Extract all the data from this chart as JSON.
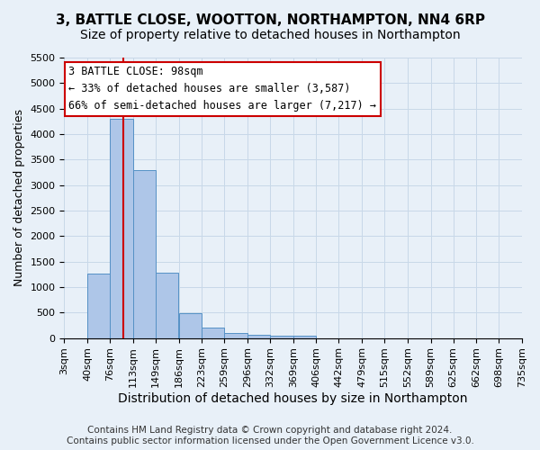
{
  "title": "3, BATTLE CLOSE, WOOTTON, NORTHAMPTON, NN4 6RP",
  "subtitle": "Size of property relative to detached houses in Northampton",
  "xlabel": "Distribution of detached houses by size in Northampton",
  "ylabel": "Number of detached properties",
  "footer_line1": "Contains HM Land Registry data © Crown copyright and database right 2024.",
  "footer_line2": "Contains public sector information licensed under the Open Government Licence v3.0.",
  "bin_labels": [
    "3sqm",
    "40sqm",
    "76sqm",
    "113sqm",
    "149sqm",
    "186sqm",
    "223sqm",
    "259sqm",
    "296sqm",
    "332sqm",
    "369sqm",
    "406sqm",
    "442sqm",
    "479sqm",
    "515sqm",
    "552sqm",
    "589sqm",
    "625sqm",
    "662sqm",
    "698sqm",
    "735sqm"
  ],
  "bar_values": [
    0,
    1270,
    4300,
    3300,
    1280,
    480,
    200,
    100,
    70,
    50,
    50,
    0,
    0,
    0,
    0,
    0,
    0,
    0,
    0,
    0,
    0
  ],
  "bar_color": "#aec6e8",
  "bar_edge_color": "#5591c5",
  "property_line_x": 98,
  "property_line_label": "3 BATTLE CLOSE: 98sqm",
  "annotation_line1": "← 33% of detached houses are smaller (3,587)",
  "annotation_line2": "66% of semi-detached houses are larger (7,217) →",
  "annotation_box_color": "#ffffff",
  "annotation_box_edge": "#cc0000",
  "vline_color": "#cc0000",
  "ylim": [
    0,
    5500
  ],
  "yticks": [
    0,
    500,
    1000,
    1500,
    2000,
    2500,
    3000,
    3500,
    4000,
    4500,
    5000,
    5500
  ],
  "grid_color": "#c8d8e8",
  "background_color": "#e8f0f8",
  "title_fontsize": 11,
  "subtitle_fontsize": 10,
  "xlabel_fontsize": 10,
  "ylabel_fontsize": 9,
  "tick_fontsize": 8,
  "annotation_fontsize": 8.5,
  "footer_fontsize": 7.5
}
